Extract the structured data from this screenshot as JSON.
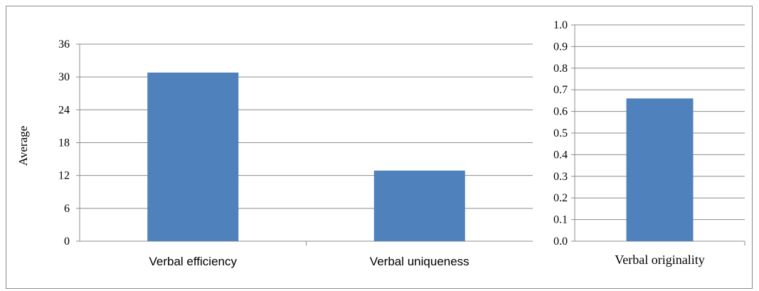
{
  "chart_data": [
    {
      "type": "bar",
      "categories": [
        "Verbal efficiency",
        "Verbal uniqueness"
      ],
      "values": [
        30.8,
        12.9
      ],
      "title": "",
      "xlabel": "",
      "ylabel": "Average",
      "ylim": [
        0,
        36
      ],
      "yticks": [
        "0",
        "6",
        "12",
        "18",
        "24",
        "30",
        "36"
      ],
      "grid": true,
      "bar_color": "#4f81bd"
    },
    {
      "type": "bar",
      "categories": [
        "Verbal originality"
      ],
      "values": [
        0.66
      ],
      "title": "",
      "xlabel": "",
      "ylabel": "",
      "ylim": [
        0,
        1.0
      ],
      "yticks": [
        "0.0",
        "0.1",
        "0.2",
        "0.3",
        "0.4",
        "0.5",
        "0.6",
        "0.7",
        "0.8",
        "0.9",
        "1.0"
      ],
      "grid": true,
      "bar_color": "#4f81bd"
    }
  ]
}
